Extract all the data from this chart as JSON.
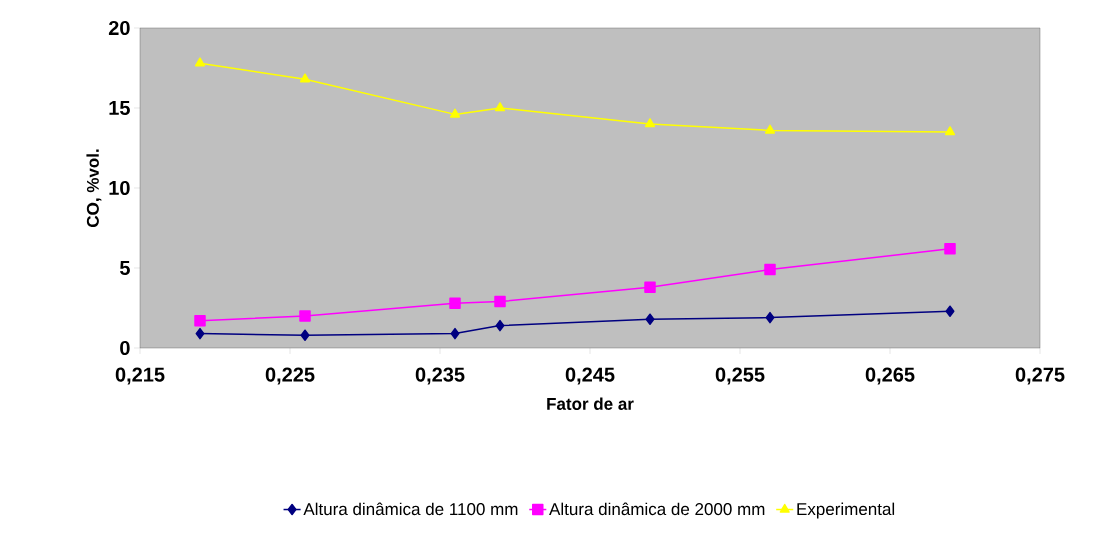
{
  "chart_data": {
    "type": "line",
    "xlabel": "Fator de ar",
    "ylabel": "CO, %vol.",
    "x": [
      0.219,
      0.226,
      0.236,
      0.239,
      0.249,
      0.257,
      0.269
    ],
    "series": [
      {
        "name": "Altura dinâmica de 1100 mm",
        "color": "#000080",
        "marker": "diamond",
        "values": [
          0.9,
          0.8,
          0.9,
          1.4,
          1.8,
          1.9,
          2.3
        ]
      },
      {
        "name": "Altura dinâmica de 2000 mm",
        "color": "#ff00ff",
        "marker": "square",
        "values": [
          1.7,
          2.0,
          2.8,
          2.9,
          3.8,
          4.9,
          6.2
        ]
      },
      {
        "name": "Experimental",
        "color": "#ffff00",
        "marker": "triangle",
        "values": [
          17.8,
          16.8,
          14.6,
          15.0,
          14.0,
          13.6,
          13.5
        ]
      }
    ],
    "xlim": [
      0.215,
      0.275
    ],
    "xticks": [
      {
        "value": 0.215,
        "label": "0,215"
      },
      {
        "value": 0.225,
        "label": "0,225"
      },
      {
        "value": 0.235,
        "label": "0,235"
      },
      {
        "value": 0.245,
        "label": "0,245"
      },
      {
        "value": 0.255,
        "label": "0,255"
      },
      {
        "value": 0.265,
        "label": "0,265"
      },
      {
        "value": 0.275,
        "label": "0,275"
      }
    ],
    "ylim": [
      0,
      20
    ],
    "yticks": [
      0,
      5,
      10,
      15,
      20
    ],
    "grid": false,
    "legend": "bottom",
    "line_style": "solid"
  }
}
